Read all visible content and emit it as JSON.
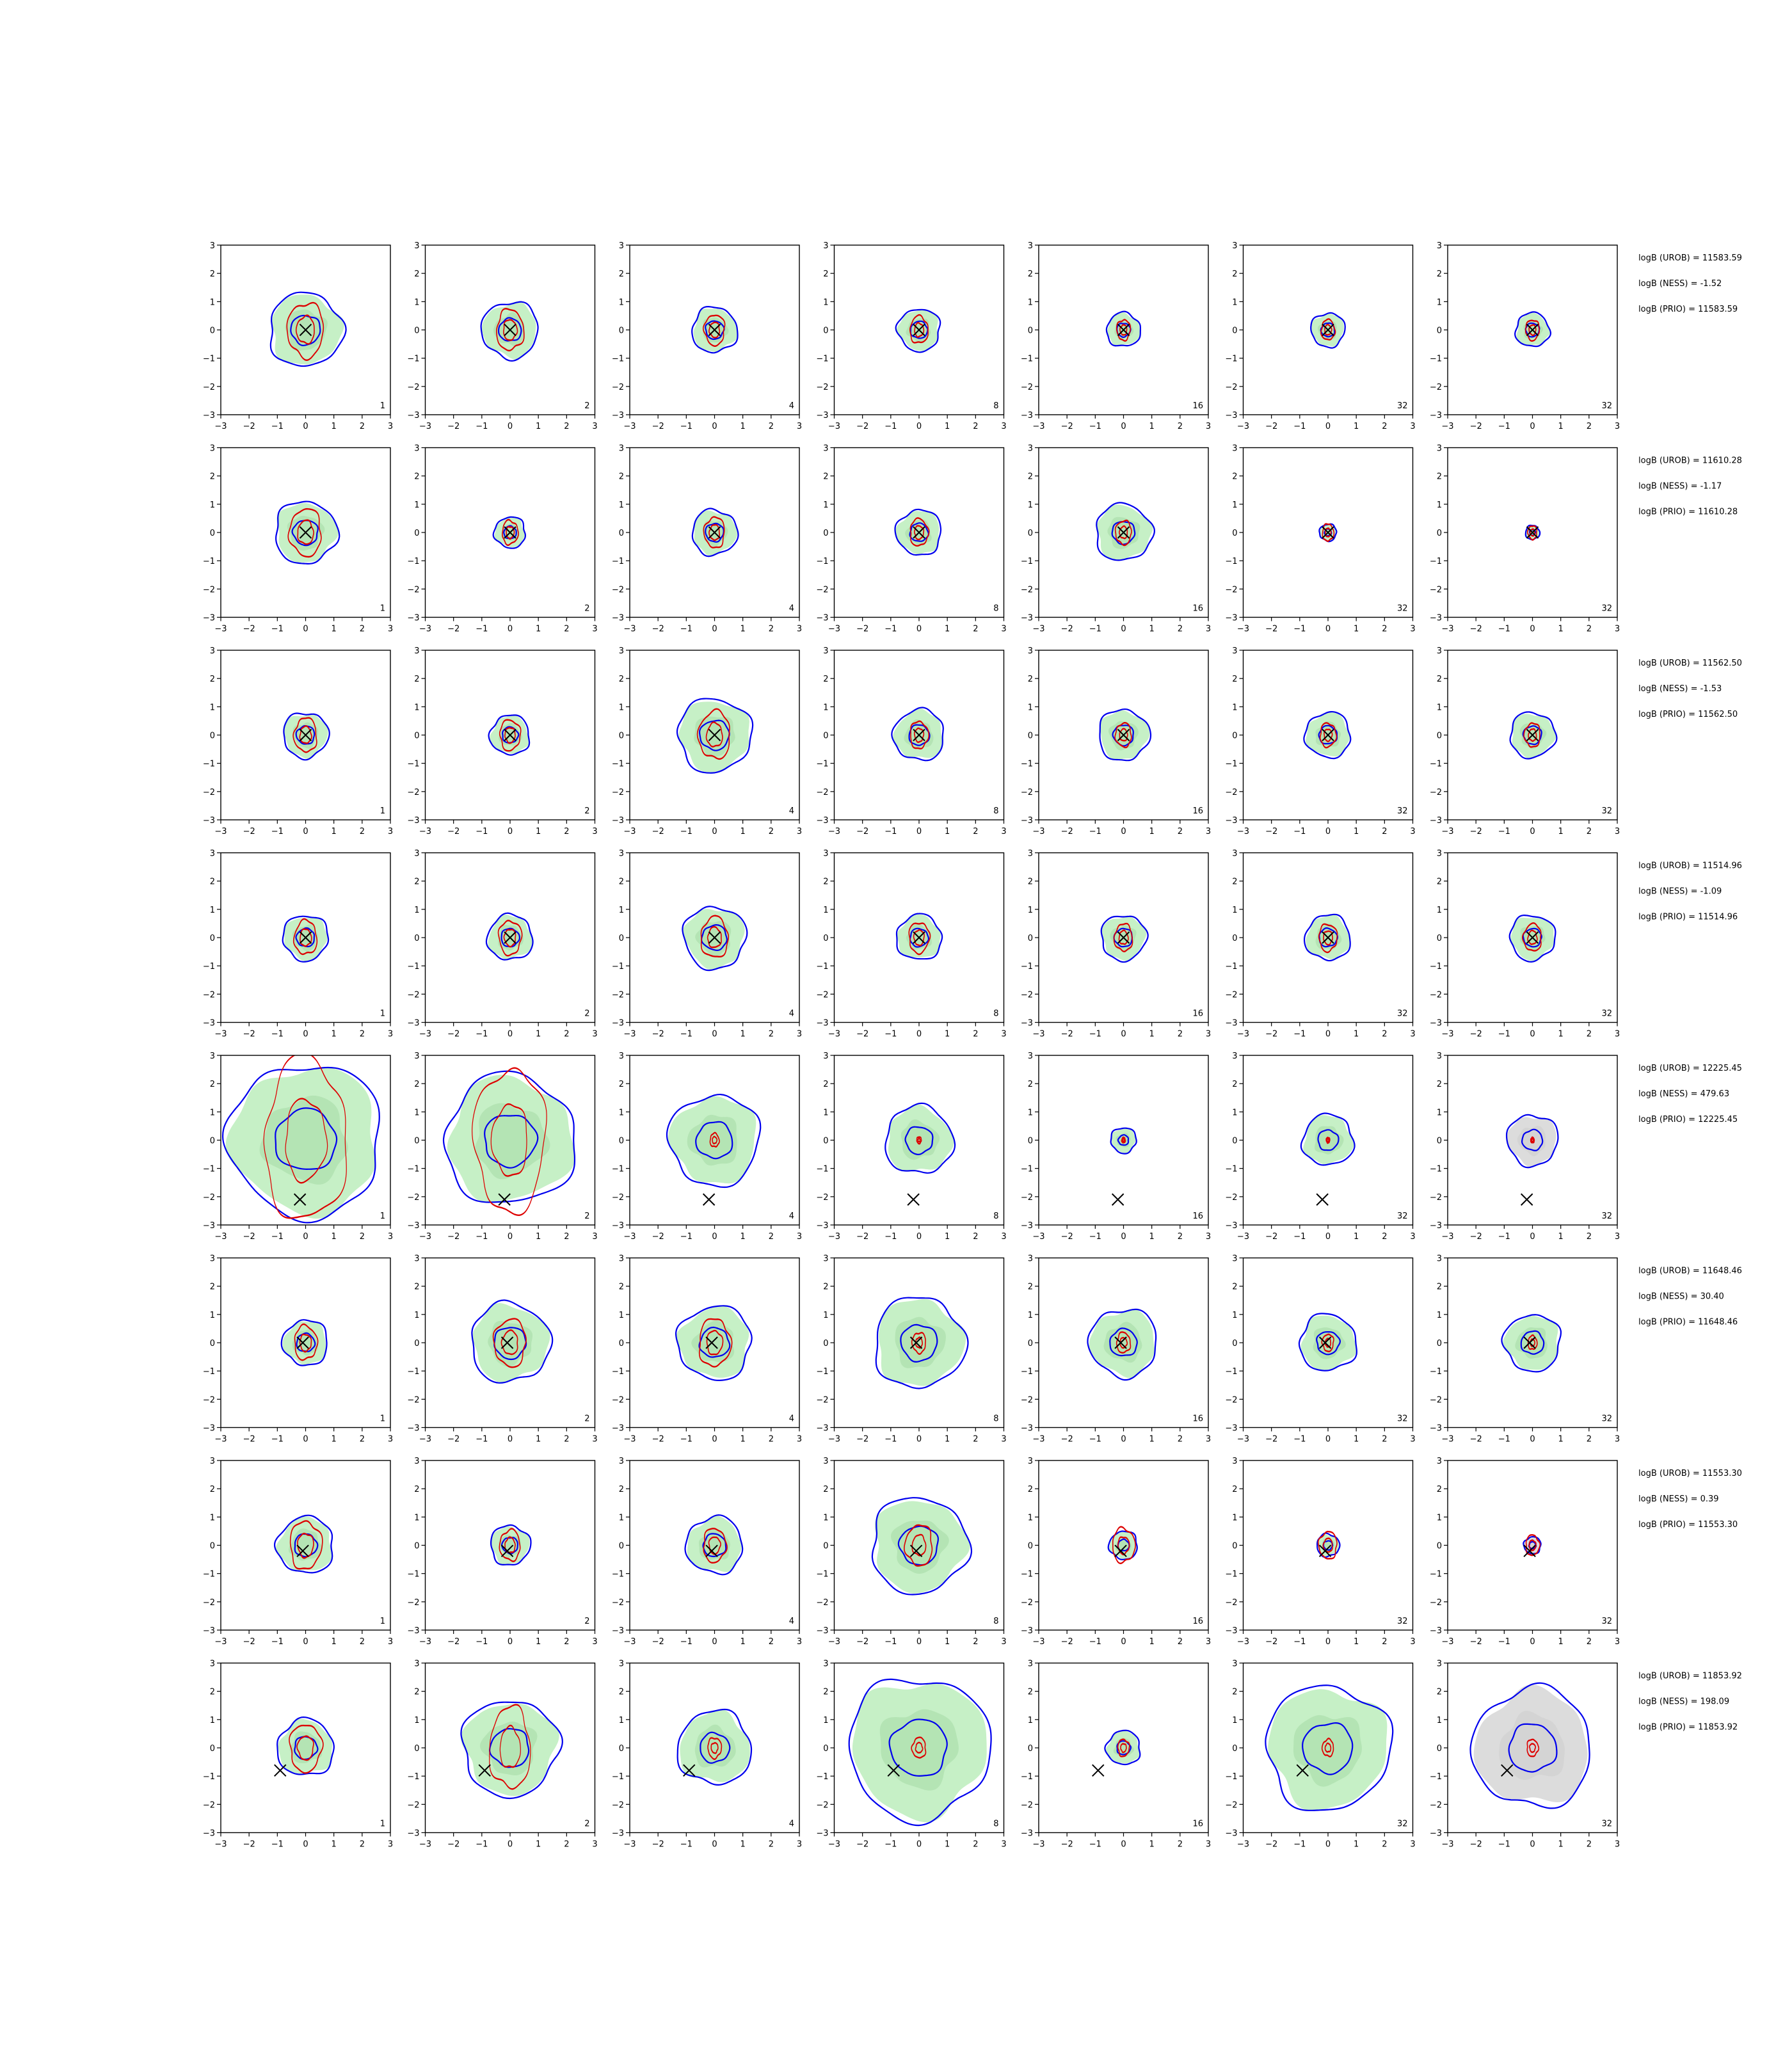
{
  "chart_data": {
    "type": "contour-grid",
    "rows": 8,
    "cols": 7,
    "xlim": [
      -3,
      3
    ],
    "ylim": [
      -3,
      3
    ],
    "x_ticks": [
      "−3",
      "−2",
      "−1",
      "0",
      "1",
      "2",
      "3"
    ],
    "y_ticks": [
      "3",
      "2",
      "1",
      "0",
      "−1",
      "−2",
      "−3"
    ],
    "column_labels": [
      "1",
      "2",
      "4",
      "8",
      "16",
      "32",
      "32"
    ],
    "colors": {
      "fill": "#c6f0c6",
      "fill_inner": "#a8dca8",
      "fill_gray": "#dcdcdc",
      "contour_a": "#0000ee",
      "contour_b": "#dd0000",
      "marker": "#000000",
      "axis": "#000000"
    },
    "rows_data": [
      {
        "stats": [
          "logB (UROB) = 11583.59",
          "logB (NESS) = -1.52",
          "logB (PRIO) = 11583.59"
        ],
        "marker": [
          0,
          0
        ],
        "spread_blue": [
          1.3,
          1.0,
          0.8,
          0.75,
          0.6,
          0.6,
          0.6
        ],
        "spread_red": [
          0.8,
          0.6,
          0.45,
          0.4,
          0.3,
          0.3,
          0.3
        ]
      },
      {
        "stats": [
          "logB (UROB) = 11610.28",
          "logB (NESS) = -1.17",
          "logB (PRIO) = 11610.28"
        ],
        "marker": [
          0,
          0
        ],
        "spread_blue": [
          1.1,
          0.55,
          0.8,
          0.8,
          1.0,
          0.3,
          0.25
        ],
        "spread_red": [
          0.7,
          0.35,
          0.45,
          0.4,
          0.35,
          0.25,
          0.2
        ]
      },
      {
        "stats": [
          "logB (UROB) = 11562.50",
          "logB (NESS) = -1.53",
          "logB (PRIO) = 11562.50"
        ],
        "marker": [
          0,
          0
        ],
        "spread_blue": [
          0.8,
          0.7,
          1.3,
          0.9,
          0.9,
          0.8,
          0.8
        ],
        "spread_red": [
          0.5,
          0.45,
          0.7,
          0.4,
          0.35,
          0.35,
          0.35
        ]
      },
      {
        "stats": [
          "logB (UROB) = 11514.96",
          "logB (NESS) = -1.09",
          "logB (PRIO) = 11514.96"
        ],
        "marker": [
          0,
          0
        ],
        "spread_blue": [
          0.8,
          0.8,
          1.1,
          0.8,
          0.8,
          0.8,
          0.8
        ],
        "spread_red": [
          0.5,
          0.5,
          0.6,
          0.45,
          0.4,
          0.4,
          0.4
        ]
      },
      {
        "stats": [
          "logB (UROB) = 12225.45",
          "logB (NESS) = 479.63",
          "logB (PRIO) = 12225.45"
        ],
        "marker": [
          -0.2,
          -2.1
        ],
        "spread_blue": [
          2.7,
          2.3,
          1.6,
          1.2,
          0.45,
          0.9,
          0.9
        ],
        "spread_red": [
          2.4,
          2.1,
          0.2,
          0.1,
          0.08,
          0.08,
          0.08
        ]
      },
      {
        "stats": [
          "logB (UROB) = 11648.46",
          "logB (NESS) = 30.40",
          "logB (PRIO) = 11648.46"
        ],
        "marker": [
          -0.1,
          0
        ],
        "spread_blue": [
          0.8,
          1.4,
          1.3,
          1.6,
          1.2,
          1.0,
          1.0
        ],
        "spread_red": [
          0.5,
          0.7,
          0.7,
          0.3,
          0.3,
          0.25,
          0.2
        ]
      },
      {
        "stats": [
          "logB (UROB) = 11553.30",
          "logB (NESS) = 0.39",
          "logB (PRIO) = 11553.30"
        ],
        "marker": [
          -0.1,
          -0.2
        ],
        "spread_blue": [
          1.0,
          0.7,
          1.0,
          1.7,
          0.5,
          0.4,
          0.3
        ],
        "spread_red": [
          0.7,
          0.45,
          0.5,
          0.6,
          0.5,
          0.4,
          0.3
        ]
      },
      {
        "stats": [
          "logB (UROB) = 11853.92",
          "logB (NESS) = 198.09",
          "logB (PRIO) = 11853.92"
        ],
        "marker": [
          -0.9,
          -0.8
        ],
        "spread_blue": [
          1.0,
          1.7,
          1.3,
          2.5,
          0.6,
          2.2,
          2.1
        ],
        "spread_red": [
          0.7,
          1.2,
          0.3,
          0.3,
          0.25,
          0.25,
          0.25
        ]
      }
    ]
  }
}
